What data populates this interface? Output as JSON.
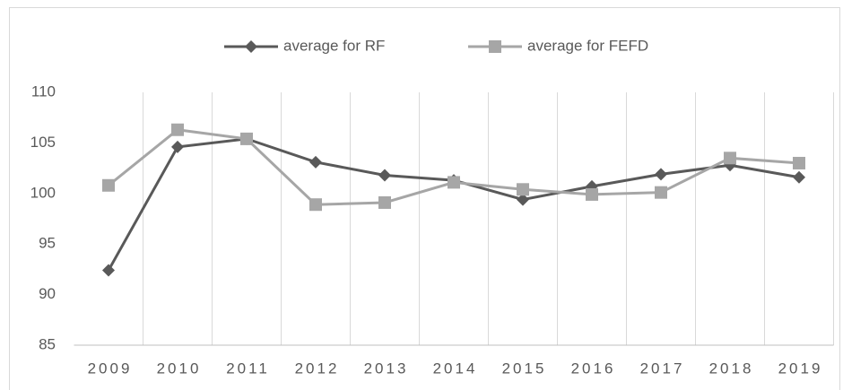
{
  "chart_data": {
    "type": "line",
    "categories": [
      "2009",
      "2010",
      "2011",
      "2012",
      "2013",
      "2014",
      "2015",
      "2016",
      "2017",
      "2018",
      "2019"
    ],
    "series": [
      {
        "name": "average for RF",
        "color": "#595959",
        "marker": "diamond",
        "values": [
          92.4,
          104.6,
          105.4,
          103.1,
          101.8,
          101.3,
          99.4,
          100.7,
          101.9,
          102.8,
          101.6
        ]
      },
      {
        "name": "average for FEFD",
        "color": "#a6a6a6",
        "marker": "square",
        "values": [
          100.8,
          106.3,
          105.4,
          98.9,
          99.1,
          101.1,
          100.4,
          99.9,
          100.1,
          103.5,
          103.0
        ]
      }
    ],
    "ylim": [
      85,
      110
    ],
    "yticks": [
      85,
      90,
      95,
      100,
      105,
      110
    ],
    "grid": true,
    "legend": "top"
  }
}
